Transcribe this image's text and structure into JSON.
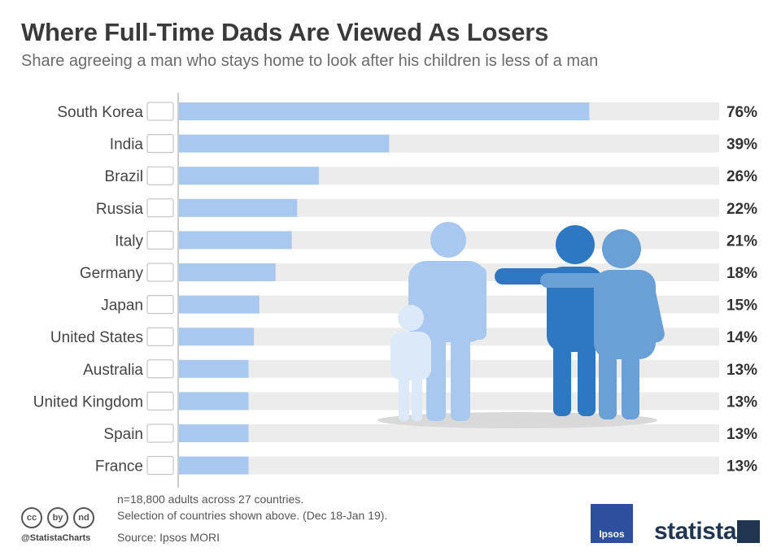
{
  "header": {
    "title": "Where Full-Time Dads Are Viewed As Losers",
    "subtitle": "Share agreeing a man who stays home to look after his children is less of a man"
  },
  "chart_data": {
    "type": "bar",
    "orientation": "horizontal",
    "title": "Where Full-Time Dads Are Viewed As Losers",
    "categories": [
      "South Korea",
      "India",
      "Brazil",
      "Russia",
      "Italy",
      "Germany",
      "Japan",
      "United States",
      "Australia",
      "United Kingdom",
      "Spain",
      "France"
    ],
    "values": [
      76,
      39,
      26,
      22,
      21,
      18,
      15,
      14,
      13,
      13,
      13,
      13
    ],
    "value_labels": [
      "76%",
      "39%",
      "26%",
      "22%",
      "21%",
      "18%",
      "15%",
      "14%",
      "13%",
      "13%",
      "13%",
      "13%"
    ],
    "unit": "%",
    "xlim": [
      0,
      100
    ],
    "grid": false,
    "colors": {
      "bar": "#a8c8f0",
      "track": "#ececec",
      "axis": "#cccccc",
      "label": "#444444",
      "value": "#333333"
    }
  },
  "footer": {
    "note_line1": "n=18,800 adults across 27 countries.",
    "note_line2": "Selection of countries shown above. (Dec 18-Jan 19).",
    "source": "Source: Ipsos MORI",
    "handle": "@StatistaCharts",
    "ipsos_logo_text": "Ipsos",
    "statista_logo_text": "statista",
    "cc_icons": [
      "cc",
      "by",
      "nd"
    ]
  },
  "illustration": {
    "colors": {
      "light": "#a8c8f0",
      "mid": "#6aa0d5",
      "dark": "#2e78c2",
      "shadow": "#d9d9d9"
    }
  }
}
